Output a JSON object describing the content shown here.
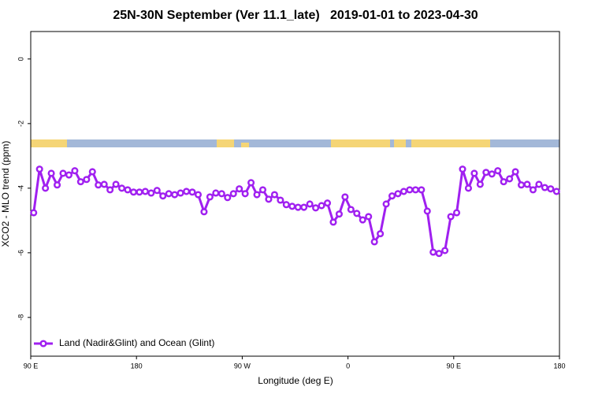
{
  "chart_data": {
    "type": "line",
    "title": "25N-30N September (Ver 11.1_late)   2019-01-01 to 2023-04-30",
    "xlabel": "Longitude (deg E)",
    "ylabel": "XCO2 - MLO trend (ppm)",
    "x": [
      92.5,
      97.5,
      102.5,
      107.5,
      112.5,
      117.5,
      122.5,
      127.5,
      132.5,
      137.5,
      142.5,
      147.5,
      152.5,
      157.5,
      162.5,
      167.5,
      172.5,
      177.5,
      182.5,
      187.5,
      192.5,
      197.5,
      202.5,
      207.5,
      212.5,
      217.5,
      222.5,
      227.5,
      232.5,
      237.5,
      242.5,
      247.5,
      252.5,
      257.5,
      262.5,
      267.5,
      272.5,
      277.5,
      282.5,
      287.5,
      292.5,
      297.5,
      302.5,
      307.5,
      312.5,
      317.5,
      322.5,
      327.5,
      332.5,
      337.5,
      342.5,
      347.5,
      352.5,
      357.5,
      362.5,
      367.5,
      372.5,
      377.5,
      382.5,
      387.5,
      392.5,
      397.5,
      402.5,
      407.5,
      412.5,
      417.5,
      422.5,
      427.5,
      432.5,
      437.5,
      442.5,
      447.5,
      452.5,
      457.5,
      462.5,
      467.5,
      472.5,
      477.5,
      482.5,
      487.5,
      492.5,
      497.5,
      502.5,
      507.5,
      512.5,
      517.5,
      522.5,
      527.5,
      532.5,
      537.5
    ],
    "series": [
      {
        "name": "Land (Nadir&Glint) and Ocean (Glint)",
        "color": "#a020f0",
        "values": [
          -4.76,
          -3.41,
          -4.0,
          -3.54,
          -3.9,
          -3.54,
          -3.59,
          -3.46,
          -3.8,
          -3.73,
          -3.49,
          -3.9,
          -3.88,
          -4.05,
          -3.88,
          -4.0,
          -4.05,
          -4.12,
          -4.12,
          -4.1,
          -4.15,
          -4.07,
          -4.24,
          -4.17,
          -4.2,
          -4.15,
          -4.1,
          -4.12,
          -4.2,
          -4.73,
          -4.27,
          -4.15,
          -4.17,
          -4.29,
          -4.17,
          -4.02,
          -4.17,
          -3.83,
          -4.2,
          -4.05,
          -4.34,
          -4.2,
          -4.37,
          -4.51,
          -4.56,
          -4.59,
          -4.59,
          -4.49,
          -4.61,
          -4.54,
          -4.46,
          -5.05,
          -4.8,
          -4.27,
          -4.66,
          -4.78,
          -4.98,
          -4.88,
          -5.66,
          -5.41,
          -4.49,
          -4.24,
          -4.17,
          -4.1,
          -4.05,
          -4.05,
          -4.05,
          -4.71,
          -5.98,
          -6.02,
          -5.93,
          -4.88,
          -4.76,
          -3.41,
          -4.0,
          -3.54,
          -3.88,
          -3.51,
          -3.56,
          -3.46,
          -3.8,
          -3.71,
          -3.49,
          -3.9,
          -3.88,
          -4.05,
          -3.88,
          -3.98,
          -4.02,
          -4.1
        ]
      }
    ],
    "xlim": [
      90,
      540
    ],
    "xticks": [
      {
        "value": 90,
        "label": "90 E"
      },
      180,
      {
        "value": 270,
        "label": "90 W"
      },
      {
        "value": 360,
        "label": "0"
      },
      {
        "value": 450,
        "label": "90 E"
      },
      {
        "value": 540,
        "label": "180"
      }
    ],
    "ylim": [
      -9.2,
      0.85
    ],
    "yticks": [
      0,
      -2,
      -4,
      -6,
      -8
    ],
    "legend": "bottom-left",
    "grid": false
  }
}
